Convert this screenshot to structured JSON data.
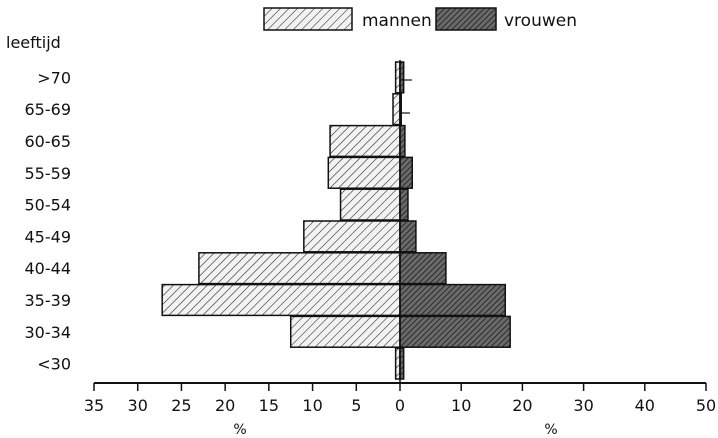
{
  "chart_data": {
    "type": "bar",
    "orientation": "horizontal",
    "subtype": "population-pyramid",
    "title": "",
    "ylabel": "leeftijd",
    "xlabel_left": "%",
    "xlabel_right": "%",
    "categories": [
      ">70",
      "65-69",
      "60-65",
      "55-59",
      "50-54",
      "45-49",
      "40-44",
      "35-39",
      "30-34",
      "<30"
    ],
    "series": [
      {
        "name": "mannen",
        "side": "left",
        "color": "#cfcfcf",
        "values": [
          0.5,
          0.8,
          8.0,
          8.2,
          6.8,
          11.0,
          23.0,
          27.2,
          12.5,
          0.5
        ]
      },
      {
        "name": "vrouwen",
        "side": "right",
        "color": "#6e6e6e",
        "values": [
          0.6,
          0.2,
          0.8,
          2.0,
          1.3,
          2.6,
          7.5,
          17.2,
          18.0,
          0.6
        ]
      }
    ],
    "left_axis": {
      "ticks": [
        35,
        30,
        25,
        20,
        15,
        10,
        5,
        0
      ],
      "range": [
        0,
        35
      ]
    },
    "right_axis": {
      "ticks": [
        0,
        10,
        20,
        30,
        40,
        50
      ],
      "range": [
        0,
        50
      ]
    },
    "legend_position": "top",
    "grid": false
  }
}
